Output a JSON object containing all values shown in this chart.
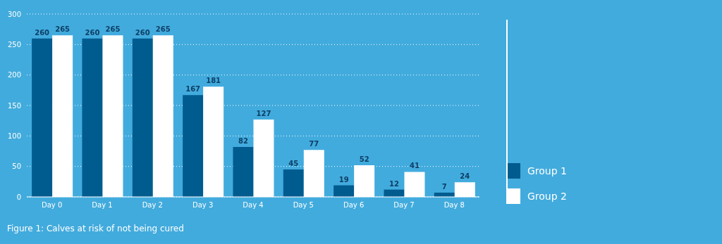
{
  "chart_data": {
    "type": "bar",
    "categories": [
      "Day 0",
      "Day 1",
      "Day 2",
      "Day 3",
      "Day 4",
      "Day 5",
      "Day 6",
      "Day 7",
      "Day 8"
    ],
    "series": [
      {
        "name": "Group 1",
        "color": "#005b8f",
        "values": [
          260,
          260,
          260,
          167,
          82,
          45,
          19,
          12,
          7
        ]
      },
      {
        "name": "Group 2",
        "color": "#ffffff",
        "values": [
          265,
          265,
          265,
          181,
          127,
          77,
          52,
          41,
          24
        ]
      }
    ],
    "ylim": [
      0,
      300
    ],
    "yticks": [
      0,
      50,
      100,
      150,
      200,
      250,
      300
    ],
    "grid": "y",
    "legend": "right",
    "data_labels": true,
    "annotations": [
      "Figure 1: Calves at risk of not being cured"
    ]
  }
}
